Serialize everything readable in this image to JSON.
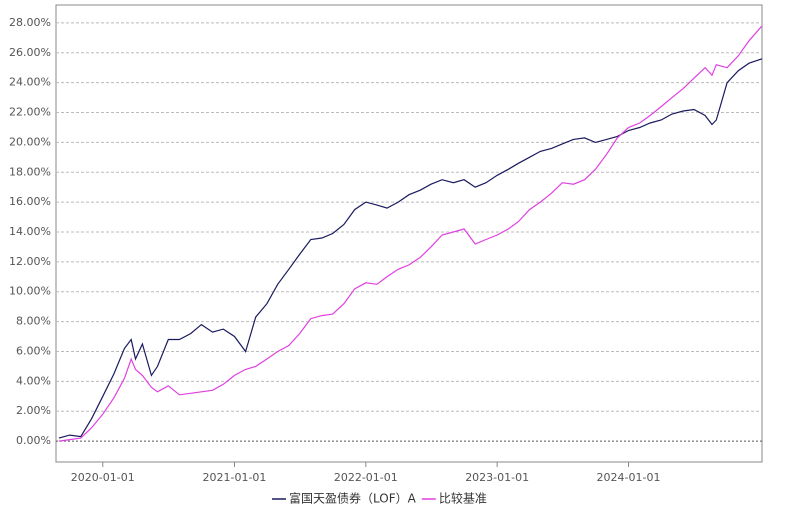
{
  "chart_data": {
    "type": "line",
    "x": [
      "2019-09-01",
      "2019-10-01",
      "2019-11-01",
      "2019-12-01",
      "2020-01-01",
      "2020-02-01",
      "2020-03-01",
      "2020-03-20",
      "2020-04-01",
      "2020-04-20",
      "2020-05-15",
      "2020-06-01",
      "2020-07-01",
      "2020-08-01",
      "2020-09-01",
      "2020-10-01",
      "2020-11-01",
      "2020-12-01",
      "2021-01-01",
      "2021-02-01",
      "2021-03-01",
      "2021-04-01",
      "2021-05-01",
      "2021-06-01",
      "2021-07-01",
      "2021-08-01",
      "2021-09-01",
      "2021-10-01",
      "2021-11-01",
      "2021-12-01",
      "2022-01-01",
      "2022-02-01",
      "2022-03-01",
      "2022-04-01",
      "2022-05-01",
      "2022-06-01",
      "2022-07-01",
      "2022-08-01",
      "2022-09-01",
      "2022-10-01",
      "2022-11-01",
      "2022-12-01",
      "2023-01-01",
      "2023-02-01",
      "2023-03-01",
      "2023-04-01",
      "2023-05-01",
      "2023-06-01",
      "2023-07-01",
      "2023-08-01",
      "2023-09-01",
      "2023-10-01",
      "2023-11-01",
      "2023-12-01",
      "2024-01-01",
      "2024-02-01",
      "2024-03-01",
      "2024-04-01",
      "2024-05-01",
      "2024-06-01",
      "2024-07-01",
      "2024-08-01",
      "2024-08-20",
      "2024-09-01",
      "2024-10-01",
      "2024-11-01",
      "2024-12-01",
      "2025-01-06"
    ],
    "series": [
      {
        "name": "富国天盈债券（LOF）A",
        "color": "#1a1a5e",
        "values": [
          0.2,
          0.4,
          0.3,
          1.5,
          3.0,
          4.5,
          6.2,
          6.8,
          5.5,
          6.5,
          4.4,
          5.0,
          6.8,
          6.8,
          7.2,
          7.8,
          7.3,
          7.5,
          7.0,
          6.0,
          8.3,
          9.2,
          10.5,
          11.5,
          12.5,
          13.5,
          13.6,
          13.9,
          14.5,
          15.5,
          16.0,
          15.8,
          15.6,
          16.0,
          16.5,
          16.8,
          17.2,
          17.5,
          17.3,
          17.5,
          17.0,
          17.3,
          17.8,
          18.2,
          18.6,
          19.0,
          19.4,
          19.6,
          19.9,
          20.2,
          20.3,
          20.0,
          20.2,
          20.4,
          20.8,
          21.0,
          21.3,
          21.5,
          21.9,
          22.1,
          22.2,
          21.8,
          21.2,
          21.5,
          24.0,
          24.8,
          25.3,
          25.6
        ]
      },
      {
        "name": "比较基准",
        "color": "#e040e0",
        "values": [
          0.0,
          0.1,
          0.2,
          0.9,
          1.8,
          2.9,
          4.2,
          5.5,
          4.8,
          4.4,
          3.6,
          3.3,
          3.7,
          3.1,
          3.2,
          3.3,
          3.4,
          3.8,
          4.4,
          4.8,
          5.0,
          5.5,
          6.0,
          6.4,
          7.2,
          8.2,
          8.4,
          8.5,
          9.2,
          10.2,
          10.6,
          10.5,
          11.0,
          11.5,
          11.8,
          12.3,
          13.0,
          13.8,
          14.0,
          14.2,
          13.2,
          13.5,
          13.8,
          14.2,
          14.7,
          15.5,
          16.0,
          16.6,
          17.3,
          17.2,
          17.5,
          18.2,
          19.2,
          20.3,
          21.0,
          21.3,
          21.8,
          22.4,
          23.0,
          23.6,
          24.3,
          25.0,
          24.5,
          25.2,
          25.0,
          25.8,
          26.8,
          27.8
        ]
      }
    ],
    "xlim": [
      "2019-08-24",
      "2025-01-06"
    ],
    "xticks": [
      "2020-01-01",
      "2021-01-01",
      "2022-01-01",
      "2023-01-01",
      "2024-01-01"
    ],
    "ylim": [
      -1.4,
      29.2
    ],
    "yticks": [
      {
        "value": 0,
        "label": "0.00%"
      },
      {
        "value": 2,
        "label": "2.00%"
      },
      {
        "value": 4,
        "label": "4.00%"
      },
      {
        "value": 6,
        "label": "6.00%"
      },
      {
        "value": 8,
        "label": "8.00%"
      },
      {
        "value": 10,
        "label": "10.00%"
      },
      {
        "value": 12,
        "label": "12.00%"
      },
      {
        "value": 14,
        "label": "14.00%"
      },
      {
        "value": 16,
        "label": "16.00%"
      },
      {
        "value": 18,
        "label": "18.00%"
      },
      {
        "value": 20,
        "label": "20.00%"
      },
      {
        "value": 22,
        "label": "22.00%"
      },
      {
        "value": 24,
        "label": "24.00%"
      },
      {
        "value": 26,
        "label": "26.00%"
      },
      {
        "value": 28,
        "label": "28.00%"
      }
    ],
    "grid": true
  }
}
